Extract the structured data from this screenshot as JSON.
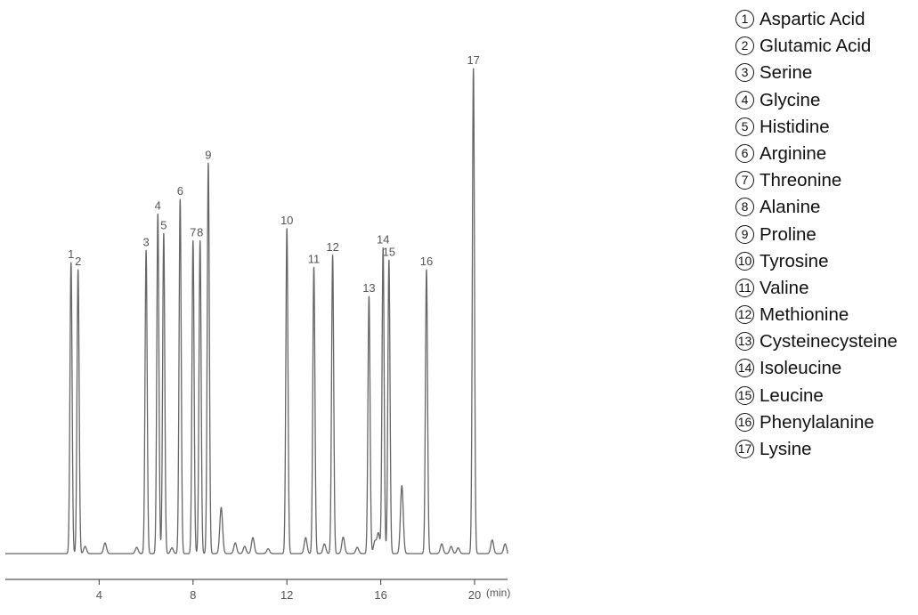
{
  "chart_data": {
    "type": "line",
    "title": "",
    "xlabel": "(min)",
    "ylabel": "",
    "x_ticks": [
      4,
      8,
      12,
      16,
      20
    ],
    "xlim": [
      0,
      21.5
    ],
    "ylim": [
      0,
      100
    ],
    "grid": false,
    "legend_position": "right",
    "peaks": [
      {
        "label": "1",
        "time": 2.8,
        "height": 60.0
      },
      {
        "label": "2",
        "time": 3.1,
        "height": 58.5
      },
      {
        "label": "3",
        "time": 6.0,
        "height": 62.5
      },
      {
        "label": "4",
        "time": 6.5,
        "height": 70.0
      },
      {
        "label": "5",
        "time": 6.75,
        "height": 66.0
      },
      {
        "label": "6",
        "time": 7.45,
        "height": 73.0
      },
      {
        "label": "7",
        "time": 8.0,
        "height": 64.5
      },
      {
        "label": "8",
        "time": 8.3,
        "height": 64.5
      },
      {
        "label": "9",
        "time": 8.65,
        "height": 80.5
      },
      {
        "label": "10",
        "time": 12.0,
        "height": 67.0
      },
      {
        "label": "11",
        "time": 13.15,
        "height": 59.0
      },
      {
        "label": "12",
        "time": 13.95,
        "height": 61.5
      },
      {
        "label": "13",
        "time": 15.5,
        "height": 53.0
      },
      {
        "label": "14",
        "time": 16.1,
        "height": 63.0
      },
      {
        "label": "15",
        "time": 16.35,
        "height": 60.5
      },
      {
        "label": "16",
        "time": 17.95,
        "height": 58.5
      },
      {
        "label": "17",
        "time": 19.95,
        "height": 100.0
      }
    ],
    "minor_peaks": [
      {
        "time": 3.4,
        "height": 1.5
      },
      {
        "time": 4.25,
        "height": 2.2
      },
      {
        "time": 5.6,
        "height": 1.3
      },
      {
        "time": 7.1,
        "height": 1.2
      },
      {
        "time": 9.2,
        "height": 9.5
      },
      {
        "time": 9.8,
        "height": 2.2
      },
      {
        "time": 10.2,
        "height": 1.5
      },
      {
        "time": 10.55,
        "height": 3.3
      },
      {
        "time": 11.2,
        "height": 1.0
      },
      {
        "time": 12.8,
        "height": 3.3
      },
      {
        "time": 13.6,
        "height": 2.0
      },
      {
        "time": 14.4,
        "height": 3.4
      },
      {
        "time": 15.0,
        "height": 1.3
      },
      {
        "time": 15.75,
        "height": 2.5
      },
      {
        "time": 15.9,
        "height": 4.2
      },
      {
        "time": 16.9,
        "height": 14.0
      },
      {
        "time": 18.6,
        "height": 2.0
      },
      {
        "time": 19.0,
        "height": 1.5
      },
      {
        "time": 19.3,
        "height": 1.2
      },
      {
        "time": 20.75,
        "height": 2.8
      },
      {
        "time": 21.3,
        "height": 2.0
      }
    ],
    "legend": [
      {
        "marker": "1",
        "name": "Aspartic Acid"
      },
      {
        "marker": "2",
        "name": "Glutamic Acid"
      },
      {
        "marker": "3",
        "name": "Serine"
      },
      {
        "marker": "4",
        "name": "Glycine"
      },
      {
        "marker": "5",
        "name": "Histidine"
      },
      {
        "marker": "6",
        "name": "Arginine"
      },
      {
        "marker": "7",
        "name": "Threonine"
      },
      {
        "marker": "8",
        "name": "Alanine"
      },
      {
        "marker": "9",
        "name": "Proline"
      },
      {
        "marker": "10",
        "name": "Tyrosine"
      },
      {
        "marker": "11",
        "name": "Valine"
      },
      {
        "marker": "12",
        "name": "Methionine"
      },
      {
        "marker": "13",
        "name": "Cysteinecysteine"
      },
      {
        "marker": "14",
        "name": "Isoleucine"
      },
      {
        "marker": "15",
        "name": "Leucine"
      },
      {
        "marker": "16",
        "name": "Phenylalanine"
      },
      {
        "marker": "17",
        "name": "Lysine"
      }
    ],
    "colors": {
      "trace": "#666666",
      "axis": "#555555",
      "text": "#555555",
      "legend_text": "#111111"
    }
  }
}
